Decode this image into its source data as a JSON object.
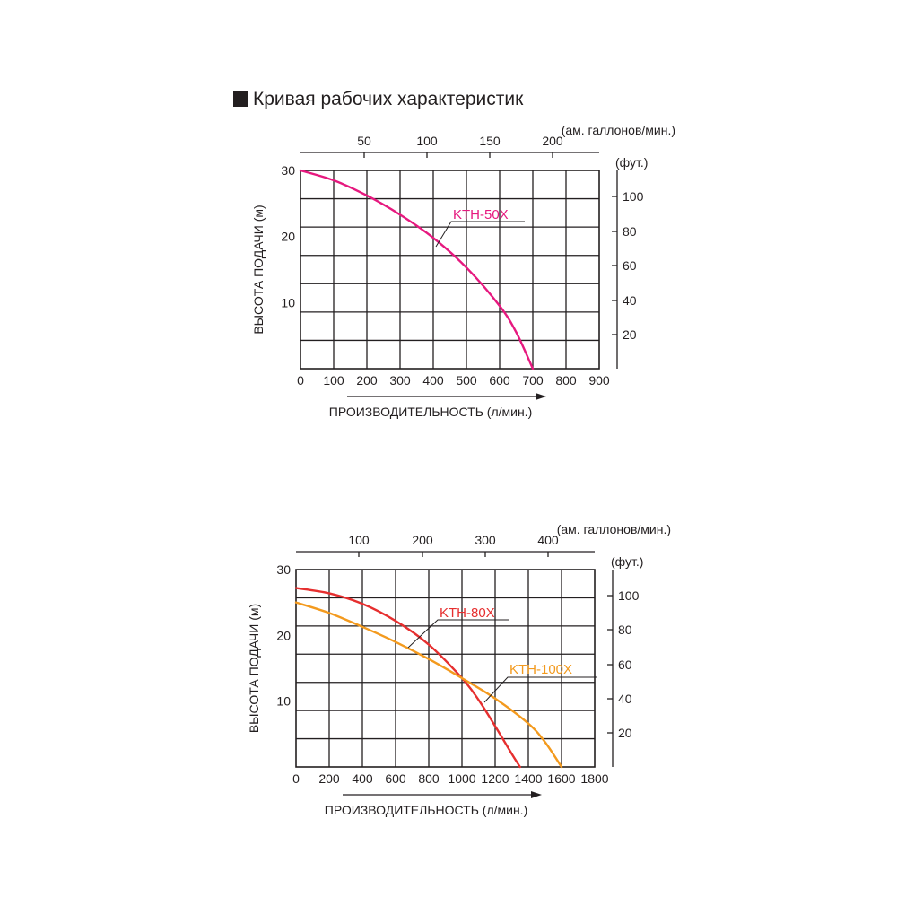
{
  "heading": "Кривая рабочих характеристик",
  "colors": {
    "grid": "#231f20",
    "kth50x": "#e6197f",
    "kth80x": "#e62f2f",
    "kth100x": "#f39a1e"
  },
  "chart_data": [
    {
      "type": "line",
      "xlabel": "ПРОИЗВОДИТЕЛЬНОСТЬ (л/мин.)",
      "ylabel": "ВЫСОТА ПОДАЧИ (м)",
      "xlim": [
        0,
        900
      ],
      "ylim": [
        0,
        30
      ],
      "x_ticks": [
        0,
        100,
        200,
        300,
        400,
        500,
        600,
        700,
        800,
        900
      ],
      "y_ticks": [
        10,
        20,
        30
      ],
      "grid": true,
      "top_axis": {
        "label": "(ам. галлонов/мин.)",
        "ticks": [
          50,
          100,
          150,
          200
        ]
      },
      "right_axis": {
        "label": "(фут.)",
        "ticks": [
          20,
          40,
          60,
          80,
          100
        ]
      },
      "series": [
        {
          "name": "KTH-50X",
          "color": "#e6197f",
          "x": [
            0,
            100,
            200,
            300,
            400,
            500,
            600,
            650,
            700
          ],
          "y": [
            30,
            28.5,
            26.2,
            23.3,
            19.8,
            15.3,
            9.5,
            5.5,
            0
          ]
        }
      ]
    },
    {
      "type": "line",
      "xlabel": "ПРОИЗВОДИТЕЛЬНОСТЬ (л/мин.)",
      "ylabel": "ВЫСОТА ПОДАЧИ (м)",
      "xlim": [
        0,
        1800
      ],
      "ylim": [
        0,
        30
      ],
      "x_ticks": [
        0,
        200,
        400,
        600,
        800,
        1000,
        1200,
        1400,
        1600,
        1800
      ],
      "y_ticks": [
        10,
        20,
        30
      ],
      "grid": true,
      "top_axis": {
        "label": "(ам. галлонов/мин.)",
        "ticks": [
          100,
          200,
          300,
          400
        ]
      },
      "right_axis": {
        "label": "(фут.)",
        "ticks": [
          20,
          40,
          60,
          80,
          100
        ]
      },
      "series": [
        {
          "name": "KTH-80X",
          "color": "#e62f2f",
          "x": [
            0,
            200,
            400,
            600,
            800,
            1000,
            1100,
            1200,
            1300,
            1350
          ],
          "y": [
            27.2,
            26.4,
            24.8,
            22.2,
            18.6,
            13.5,
            10.2,
            6.2,
            2,
            0
          ]
        },
        {
          "name": "KTH-100X",
          "color": "#f39a1e",
          "x": [
            0,
            200,
            400,
            600,
            800,
            1000,
            1200,
            1400,
            1500,
            1600
          ],
          "y": [
            25,
            23.4,
            21.3,
            19,
            16.4,
            13.5,
            10.4,
            6.6,
            3.8,
            0
          ]
        }
      ]
    }
  ]
}
